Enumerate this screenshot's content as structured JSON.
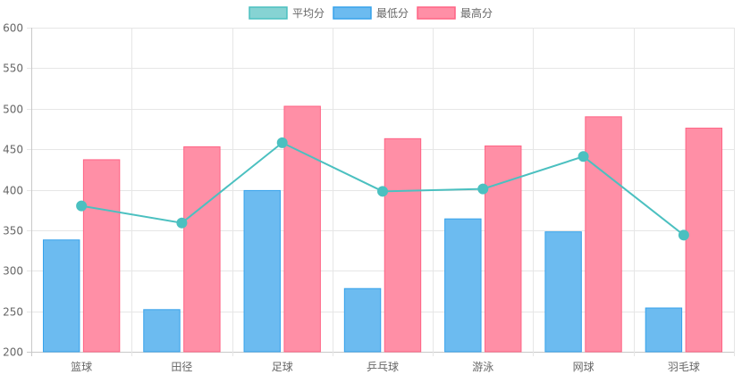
{
  "chart_data": {
    "type": "bar",
    "categories": [
      "篮球",
      "田径",
      "足球",
      "乒乓球",
      "游泳",
      "网球",
      "羽毛球"
    ],
    "series": [
      {
        "name": "平均分",
        "kind": "line",
        "values": [
          380,
          359,
          458,
          398,
          401,
          441,
          344
        ],
        "color": "#4bc0c0",
        "fill": "#86d3d3"
      },
      {
        "name": "最低分",
        "kind": "bar",
        "values": [
          338,
          252,
          399,
          278,
          364,
          348,
          254
        ],
        "color": "#36a2eb",
        "fill": "#6cbbf0"
      },
      {
        "name": "最高分",
        "kind": "bar",
        "values": [
          437,
          453,
          503,
          463,
          454,
          490,
          476
        ],
        "color": "#ff6384",
        "fill": "#ff8fa6"
      }
    ],
    "ylim": [
      200,
      600
    ],
    "yticks": [
      "200",
      "250",
      "300",
      "350",
      "400",
      "450",
      "500",
      "550",
      "600"
    ],
    "grid": true,
    "legend": "top-center",
    "title": "",
    "xlabel": "",
    "ylabel": ""
  }
}
